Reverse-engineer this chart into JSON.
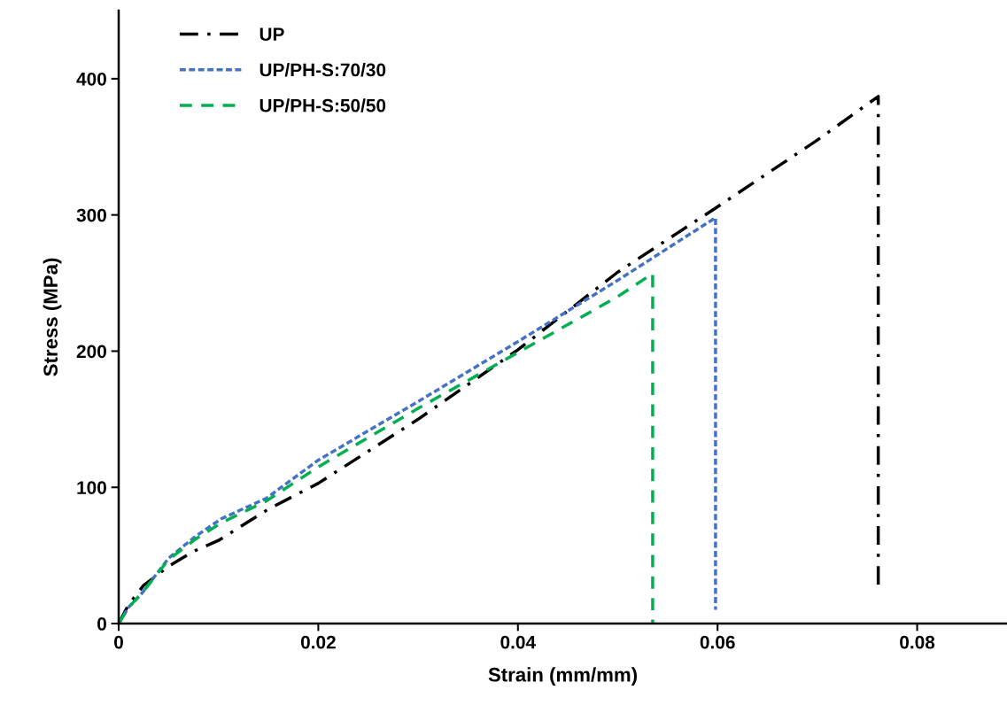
{
  "chart_data": {
    "type": "line",
    "xlabel": "Strain (mm/mm)",
    "ylabel": "Stress (MPa)",
    "xlim": [
      0,
      0.089
    ],
    "ylim": [
      0,
      450
    ],
    "xticks": [
      {
        "value": 0,
        "label": "0"
      },
      0.02,
      0.04,
      0.06,
      0.08
    ],
    "yticks": [
      0,
      100,
      200,
      300,
      400
    ],
    "grid": false,
    "legend": "top left",
    "marker": "none",
    "series": [
      {
        "name": "UP",
        "color": "#000000",
        "line_style": "dashdot",
        "x": [
          0,
          0.001,
          0.0025,
          0.005,
          0.0075,
          0.01,
          0.015,
          0.02,
          0.03,
          0.04,
          0.05,
          0.06,
          0.07,
          0.0761,
          0.0761
        ],
        "values": [
          0,
          14,
          28,
          42,
          53,
          61,
          84,
          103,
          150,
          201,
          258,
          306,
          355,
          387,
          27
        ]
      },
      {
        "name": "UP/PH-S:70/30",
        "color": "#4472c4",
        "line_style": "dotted",
        "x": [
          0,
          0.001,
          0.0023,
          0.005,
          0.0077,
          0.0103,
          0.0148,
          0.02,
          0.03,
          0.04,
          0.05,
          0.0598,
          0.0598
        ],
        "values": [
          0,
          12,
          22,
          48,
          64,
          77,
          92,
          120,
          163,
          207,
          252,
          298,
          10
        ]
      },
      {
        "name": "UP/PH-S:50/50",
        "color": "#00b050",
        "line_style": "dashed",
        "x": [
          0,
          0.001,
          0.0023,
          0.005,
          0.0077,
          0.0103,
          0.0148,
          0.02,
          0.03,
          0.04,
          0.05,
          0.0535,
          0.0535
        ],
        "values": [
          0,
          12,
          22,
          47,
          62,
          74,
          90,
          115,
          158,
          199,
          240,
          257,
          0
        ]
      }
    ]
  }
}
